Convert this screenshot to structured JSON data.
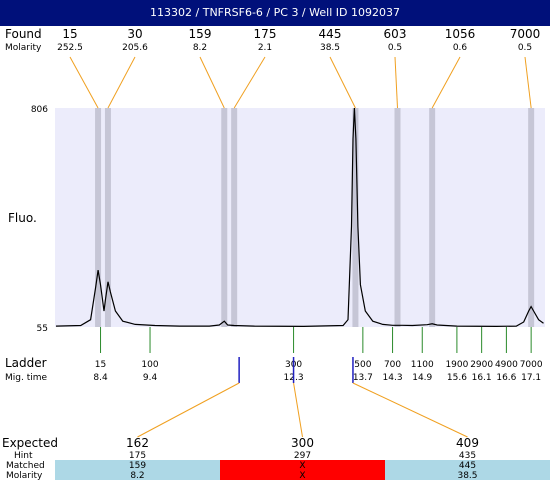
{
  "title": "113302 / TNFRSF6-6 / PC 3 / Well ID 1092037",
  "labels": {
    "found": "Found",
    "molarity": "Molarity",
    "fluo": "Fluo.",
    "ladder": "Ladder",
    "mig_time": "Mig. time",
    "expected": "Expected",
    "hint": "Hint",
    "matched": "Matched",
    "molarity_bottom": "Molarity"
  },
  "colors": {
    "plot_bg": "#ececfb",
    "band": "#c6c6d6",
    "trace": "#000000",
    "orange": "#f0a020",
    "green": "#2a8a2a",
    "blue": "#2020c0",
    "cell_ok": "#add8e6",
    "cell_bad": "#ff0000"
  },
  "chart_data": {
    "type": "line",
    "ylim": [
      55,
      806
    ],
    "y_ticks": [
      "806",
      "55"
    ],
    "found_peaks": [
      {
        "size": "15",
        "molarity": "252.5",
        "time": 8.35
      },
      {
        "size": "30",
        "molarity": "205.6",
        "time": 8.55
      },
      {
        "size": "159",
        "molarity": "8.2",
        "time": 10.9
      },
      {
        "size": "175",
        "molarity": "2.1",
        "time": 11.1
      },
      {
        "size": "445",
        "molarity": "38.5",
        "time": 13.55
      },
      {
        "size": "603",
        "molarity": "0.5",
        "time": 14.4
      },
      {
        "size": "1056",
        "molarity": "0.6",
        "time": 15.1
      },
      {
        "size": "7000",
        "molarity": "0.5",
        "time": 17.1
      }
    ],
    "ladder": [
      {
        "size": "15",
        "time": "8.4"
      },
      {
        "size": "100",
        "time": "9.4"
      },
      {
        "size": "300",
        "time": "12.3"
      },
      {
        "size": "500",
        "time": "13.7"
      },
      {
        "size": "700",
        "time": "14.3"
      },
      {
        "size": "1100",
        "time": "14.9"
      },
      {
        "size": "1900",
        "time": "15.6"
      },
      {
        "size": "2900",
        "time": "16.1"
      },
      {
        "size": "4900",
        "time": "16.6"
      },
      {
        "size": "7000",
        "time": "17.1"
      }
    ],
    "trace": [
      [
        7.5,
        58
      ],
      [
        8.0,
        60
      ],
      [
        8.2,
        80
      ],
      [
        8.3,
        190
      ],
      [
        8.35,
        250
      ],
      [
        8.4,
        200
      ],
      [
        8.47,
        110
      ],
      [
        8.5,
        150
      ],
      [
        8.55,
        210
      ],
      [
        8.6,
        175
      ],
      [
        8.7,
        110
      ],
      [
        8.85,
        75
      ],
      [
        9.1,
        64
      ],
      [
        9.5,
        60
      ],
      [
        10.0,
        58
      ],
      [
        10.6,
        58
      ],
      [
        10.8,
        62
      ],
      [
        10.9,
        75
      ],
      [
        10.97,
        62
      ],
      [
        11.1,
        60
      ],
      [
        11.5,
        58
      ],
      [
        12.5,
        57
      ],
      [
        13.3,
        60
      ],
      [
        13.4,
        80
      ],
      [
        13.47,
        400
      ],
      [
        13.5,
        700
      ],
      [
        13.53,
        806
      ],
      [
        13.56,
        700
      ],
      [
        13.6,
        400
      ],
      [
        13.65,
        200
      ],
      [
        13.75,
        110
      ],
      [
        13.9,
        75
      ],
      [
        14.1,
        64
      ],
      [
        14.3,
        61
      ],
      [
        14.5,
        61
      ],
      [
        14.7,
        60
      ],
      [
        15.0,
        63
      ],
      [
        15.1,
        66
      ],
      [
        15.2,
        62
      ],
      [
        15.6,
        58
      ],
      [
        16.4,
        57
      ],
      [
        16.8,
        58
      ],
      [
        16.95,
        72
      ],
      [
        17.05,
        110
      ],
      [
        17.1,
        125
      ],
      [
        17.15,
        110
      ],
      [
        17.25,
        80
      ],
      [
        17.35,
        68
      ]
    ],
    "expected": [
      {
        "expected": "162",
        "hint": "175",
        "matched": "159",
        "molarity": "8.2",
        "status": "ok",
        "ladder_time": 11.2
      },
      {
        "expected": "300",
        "hint": "297",
        "matched": "X",
        "molarity": "X",
        "status": "bad",
        "ladder_time": 12.3
      },
      {
        "expected": "409",
        "hint": "435",
        "matched": "445",
        "molarity": "38.5",
        "status": "ok",
        "ladder_time": 13.5
      }
    ]
  }
}
